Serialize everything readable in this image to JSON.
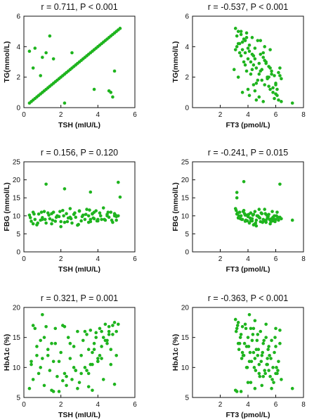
{
  "colors": {
    "points": "#1eb41e",
    "axis": "#111111",
    "background": "#ffffff"
  },
  "chart_data": [
    {
      "id": "tg-tsh",
      "type": "scatter",
      "title": "r = 0.711, P < 0.001",
      "xlabel": "TSH (mIU/L)",
      "ylabel": "TG(mmol/L)",
      "xlim": [
        0,
        6
      ],
      "ylim": [
        0,
        6
      ],
      "xticks": [
        "0",
        "2",
        "4",
        "6"
      ],
      "yticks": [
        "0",
        "2",
        "4",
        "6"
      ],
      "grid": false,
      "x": [
        0.3,
        0.4,
        0.5,
        0.6,
        0.7,
        0.8,
        0.9,
        1.0,
        1.1,
        1.2,
        1.3,
        1.4,
        1.5,
        1.6,
        1.7,
        1.8,
        1.9,
        2.0,
        2.1,
        2.2,
        2.3,
        2.4,
        2.5,
        2.6,
        2.7,
        2.8,
        2.9,
        3.0,
        3.1,
        3.2,
        3.3,
        3.4,
        3.5,
        3.6,
        3.7,
        3.8,
        3.9,
        4.0,
        4.1,
        4.2,
        4.3,
        4.4,
        4.5,
        4.6,
        4.7,
        4.8,
        4.9,
        5.0,
        5.1,
        5.2,
        0.3,
        0.6,
        0.5,
        0.9,
        1.2,
        1.4,
        1.6,
        1.0,
        2.2,
        2.6,
        3.8,
        4.6,
        4.9,
        4.8,
        4.7
      ],
      "y": [
        0.3,
        0.4,
        0.5,
        0.6,
        0.7,
        0.8,
        0.9,
        1.0,
        1.1,
        1.2,
        1.3,
        1.4,
        1.5,
        1.6,
        1.7,
        1.8,
        1.9,
        2.0,
        2.1,
        2.2,
        2.3,
        2.4,
        2.5,
        2.6,
        2.7,
        2.8,
        2.9,
        3.0,
        3.1,
        3.2,
        3.3,
        3.4,
        3.5,
        3.6,
        3.7,
        3.8,
        3.9,
        4.0,
        4.1,
        4.2,
        4.3,
        4.4,
        4.5,
        4.6,
        4.7,
        4.8,
        4.9,
        5.0,
        5.1,
        5.2,
        3.7,
        3.9,
        2.6,
        2.1,
        3.6,
        4.7,
        3.2,
        3.3,
        0.3,
        3.6,
        1.2,
        1.1,
        2.4,
        0.7,
        1.0
      ]
    },
    {
      "id": "tg-ft3",
      "type": "scatter",
      "title": "r = -0.537, P < 0.001",
      "xlabel": "FT3 (pmol/L)",
      "ylabel": "TG(mmol/L)",
      "xlim": [
        0,
        8
      ],
      "ylim": [
        0,
        6
      ],
      "xticks": [
        "2",
        "4",
        "6",
        "8"
      ],
      "yticks": [
        "0",
        "2",
        "4",
        "6"
      ],
      "grid": false,
      "x": [
        3.1,
        3.2,
        3.3,
        3.4,
        3.5,
        3.6,
        3.7,
        3.8,
        3.9,
        4.0,
        4.1,
        4.2,
        4.3,
        4.4,
        4.5,
        4.6,
        4.7,
        4.8,
        4.9,
        5.0,
        5.1,
        5.2,
        5.3,
        5.4,
        5.5,
        5.6,
        5.7,
        5.8,
        5.9,
        6.0,
        6.1,
        6.2,
        6.3,
        6.4,
        7.2,
        3.1,
        3.3,
        3.5,
        3.7,
        3.9,
        4.1,
        4.3,
        4.5,
        4.7,
        4.9,
        5.1,
        5.3,
        5.5,
        5.7,
        5.9,
        6.1,
        3.2,
        3.4,
        3.6,
        3.8,
        4.0,
        4.2,
        4.4,
        4.6,
        4.8,
        5.0,
        5.2,
        5.4,
        5.6,
        5.8,
        6.0,
        6.3,
        3.6,
        4.0,
        4.4,
        4.8,
        5.2,
        5.6,
        6.2,
        3.3,
        3.9,
        4.5,
        5.1,
        5.5,
        6.0,
        4.1,
        4.6,
        3.5,
        3.0,
        3.8,
        4.3,
        4.9,
        5.4,
        6.4
      ],
      "y": [
        5.2,
        4.7,
        5.0,
        4.2,
        4.8,
        3.8,
        4.5,
        3.6,
        4.9,
        3.2,
        4.1,
        3.0,
        4.6,
        2.8,
        3.9,
        2.6,
        4.4,
        2.2,
        3.5,
        1.8,
        3.3,
        1.5,
        3.0,
        2.0,
        2.7,
        1.2,
        2.4,
        1.0,
        2.1,
        1.6,
        0.8,
        2.3,
        2.6,
        1.9,
        0.3,
        3.8,
        4.2,
        3.4,
        3.0,
        4.6,
        3.7,
        2.5,
        3.2,
        1.8,
        2.4,
        3.6,
        2.9,
        1.4,
        2.2,
        0.6,
        1.2,
        4.0,
        3.6,
        4.3,
        2.8,
        3.9,
        2.2,
        3.4,
        1.6,
        2.9,
        2.5,
        3.1,
        1.9,
        2.6,
        1.3,
        0.9,
        2.1,
        1.0,
        1.2,
        1.5,
        0.7,
        4.0,
        3.8,
        0.5,
        2.0,
        2.4,
        1.1,
        0.4,
        2.0,
        1.5,
        0.8,
        0.5,
        5.0,
        2.5,
        4.4,
        3.5,
        4.4,
        2.0,
        0.4
      ]
    },
    {
      "id": "fbg-tsh",
      "type": "scatter",
      "title": "r = 0.156, P = 0.120",
      "xlabel": "TSH (mIU/L)",
      "ylabel": "FBG (mmol/L)",
      "xlim": [
        0,
        6
      ],
      "ylim": [
        0,
        25
      ],
      "xticks": [
        "0",
        "2",
        "4",
        "6"
      ],
      "yticks": [
        "0",
        "5",
        "10",
        "15",
        "20",
        "25"
      ],
      "grid": false,
      "x": [
        0.3,
        0.4,
        0.5,
        0.6,
        0.7,
        0.8,
        0.9,
        1.0,
        1.1,
        1.2,
        1.3,
        1.4,
        1.5,
        1.6,
        1.7,
        1.8,
        1.9,
        2.0,
        2.1,
        2.2,
        2.3,
        2.4,
        2.5,
        2.6,
        2.7,
        2.8,
        2.9,
        3.0,
        3.1,
        3.2,
        3.3,
        3.4,
        3.5,
        3.6,
        3.7,
        3.8,
        3.9,
        4.0,
        4.1,
        4.2,
        4.3,
        4.4,
        4.5,
        4.6,
        4.7,
        4.8,
        4.9,
        5.0,
        5.1,
        0.35,
        0.55,
        0.75,
        0.95,
        1.15,
        1.35,
        1.55,
        1.75,
        1.95,
        2.15,
        2.35,
        2.55,
        2.75,
        2.95,
        3.15,
        3.35,
        3.55,
        3.75,
        3.95,
        4.15,
        4.35,
        4.55,
        4.75,
        4.95,
        0.5,
        1.0,
        1.5,
        2.0,
        2.5,
        3.0,
        3.5,
        4.0,
        4.5,
        5.0,
        3.6,
        3.7,
        3.8,
        1.2,
        2.2,
        3.6,
        5.1,
        5.2,
        4.9
      ],
      "y": [
        10.2,
        8.5,
        11.0,
        9.0,
        7.5,
        10.5,
        8.8,
        9.5,
        11.2,
        8.0,
        10.8,
        9.2,
        7.8,
        11.0,
        8.5,
        10.0,
        9.8,
        7.0,
        11.5,
        8.2,
        10.6,
        9.4,
        12.0,
        8.0,
        10.4,
        9.6,
        7.4,
        11.3,
        8.6,
        10.2,
        9.0,
        11.8,
        10.0,
        8.4,
        10.6,
        9.2,
        11.4,
        8.6,
        10.8,
        9.0,
        12.2,
        8.8,
        10.4,
        9.6,
        11.0,
        8.2,
        10.6,
        9.8,
        10.0,
        9.5,
        10.5,
        8.0,
        11.0,
        9.0,
        10.2,
        8.8,
        9.6,
        11.2,
        10.0,
        8.4,
        9.2,
        10.8,
        7.6,
        9.8,
        10.4,
        11.6,
        9.4,
        8.6,
        10.0,
        9.0,
        11.0,
        8.8,
        10.2,
        7.8,
        9.0,
        10.6,
        8.4,
        9.6,
        11.4,
        8.2,
        9.0,
        10.0,
        8.8,
        9.0,
        10.5,
        11.0,
        18.8,
        17.5,
        16.6,
        19.3,
        15.2,
        10.0
      ]
    },
    {
      "id": "fbg-ft3",
      "type": "scatter",
      "title": "r = -0.241, P = 0.015",
      "xlabel": "FT3 (pmol/L)",
      "ylabel": "FBG (mmol/L)",
      "xlim": [
        0,
        8
      ],
      "ylim": [
        0,
        25
      ],
      "xticks": [
        "2",
        "4",
        "6",
        "8"
      ],
      "yticks": [
        "0",
        "5",
        "10",
        "15",
        "20",
        "25"
      ],
      "grid": false,
      "x": [
        3.1,
        3.2,
        3.3,
        3.4,
        3.5,
        3.6,
        3.7,
        3.8,
        3.9,
        4.0,
        4.1,
        4.2,
        4.3,
        4.4,
        4.5,
        4.6,
        4.7,
        4.8,
        4.9,
        5.0,
        5.1,
        5.2,
        5.3,
        5.4,
        5.5,
        5.6,
        5.7,
        5.8,
        5.9,
        6.0,
        6.1,
        6.2,
        6.3,
        6.4,
        7.2,
        3.15,
        3.35,
        3.55,
        3.75,
        3.95,
        4.15,
        4.35,
        4.55,
        4.75,
        4.95,
        5.15,
        5.35,
        5.55,
        5.75,
        5.95,
        6.15,
        3.25,
        3.45,
        3.65,
        3.85,
        4.05,
        4.25,
        4.45,
        4.65,
        4.85,
        5.05,
        5.25,
        5.45,
        5.65,
        5.85,
        6.05,
        3.3,
        3.8,
        4.3,
        4.8,
        5.3,
        5.8,
        4.4,
        4.6,
        4.2,
        3.2,
        3.2,
        3.7,
        6.3
      ],
      "y": [
        12.0,
        10.5,
        9.5,
        11.0,
        10.0,
        9.0,
        11.5,
        8.5,
        10.2,
        9.8,
        8.0,
        10.8,
        9.2,
        7.5,
        11.2,
        8.8,
        10.0,
        9.6,
        8.4,
        10.6,
        9.0,
        11.8,
        8.2,
        9.4,
        10.4,
        7.8,
        9.2,
        8.6,
        10.0,
        9.0,
        11.0,
        8.8,
        9.6,
        9.2,
        8.8,
        11.5,
        10.0,
        9.0,
        10.6,
        8.6,
        9.4,
        10.2,
        8.0,
        9.8,
        10.8,
        8.6,
        10.2,
        9.0,
        11.2,
        8.4,
        9.6,
        10.8,
        9.2,
        11.2,
        8.8,
        10.4,
        9.0,
        7.6,
        10.0,
        9.4,
        8.2,
        10.6,
        9.8,
        8.4,
        9.2,
        10.0,
        9.4,
        10.2,
        8.6,
        11.8,
        8.8,
        9.6,
        10.4,
        7.2,
        8.6,
        16.5,
        15.0,
        19.5,
        18.8
      ]
    },
    {
      "id": "hba1c-tsh",
      "type": "scatter",
      "title": "r = 0.321, P = 0.001",
      "xlabel": "TSH (mIU/L)",
      "ylabel": "HbA1c (%)",
      "xlim": [
        0,
        6
      ],
      "ylim": [
        5,
        20
      ],
      "xticks": [
        "0",
        "2",
        "4",
        "6"
      ],
      "yticks": [
        "5",
        "10",
        "15",
        "20"
      ],
      "grid": false,
      "x": [
        0.3,
        0.4,
        0.5,
        0.6,
        0.7,
        0.8,
        0.9,
        1.0,
        1.1,
        1.2,
        1.3,
        1.4,
        1.5,
        1.6,
        1.7,
        1.8,
        1.9,
        2.0,
        2.1,
        2.2,
        2.3,
        2.4,
        2.5,
        2.6,
        2.7,
        2.8,
        2.9,
        3.0,
        3.1,
        3.2,
        3.3,
        3.4,
        3.5,
        3.6,
        3.7,
        3.8,
        3.9,
        4.0,
        4.1,
        4.2,
        4.3,
        4.4,
        4.5,
        4.6,
        4.7,
        4.8,
        4.9,
        5.0,
        5.1,
        0.5,
        0.7,
        0.9,
        1.1,
        1.3,
        1.5,
        1.7,
        1.9,
        2.1,
        2.3,
        2.5,
        2.7,
        2.9,
        3.1,
        3.3,
        3.5,
        3.7,
        3.9,
        4.1,
        4.3,
        4.5,
        4.7,
        4.9,
        3.6,
        3.8,
        4.0,
        4.2,
        4.4,
        4.6,
        4.8,
        5.0,
        0.4,
        1.0,
        1.6,
        2.2,
        2.8,
        3.4,
        4.0,
        4.6,
        3.5,
        4.2,
        3.7
      ],
      "y": [
        6.5,
        10.5,
        8.0,
        16.5,
        12.0,
        9.0,
        14.5,
        11.5,
        7.0,
        16.8,
        13.0,
        9.5,
        6.2,
        11.0,
        14.0,
        8.5,
        6.0,
        12.5,
        17.0,
        9.0,
        7.0,
        15.0,
        11.5,
        8.0,
        13.5,
        9.5,
        16.0,
        7.5,
        12.0,
        14.5,
        10.0,
        15.5,
        9.0,
        16.2,
        12.5,
        14.0,
        15.8,
        11.0,
        16.5,
        13.5,
        15.0,
        17.2,
        14.5,
        16.8,
        13.0,
        15.5,
        17.5,
        16.0,
        17.2,
        17.0,
        13.5,
        10.0,
        15.0,
        12.0,
        14.0,
        16.5,
        11.0,
        7.8,
        8.5,
        14.0,
        10.0,
        6.5,
        9.0,
        16.0,
        13.0,
        6.2,
        15.0,
        12.0,
        8.0,
        14.0,
        10.5,
        7.2,
        10.5,
        13.0,
        11.5,
        16.0,
        14.5,
        15.5,
        17.0,
        12.0,
        11.0,
        18.8,
        6.0,
        16.8,
        9.5,
        9.5,
        11.0,
        16.0,
        6.8,
        11.5,
        10.5
      ]
    },
    {
      "id": "hba1c-ft3",
      "type": "scatter",
      "title": "r = -0.363, P < 0.001",
      "xlabel": "FT3 (pmol/L)",
      "ylabel": "HbA1c (%)",
      "xlim": [
        0,
        8
      ],
      "ylim": [
        5,
        20
      ],
      "xticks": [
        "2",
        "4",
        "6",
        "8"
      ],
      "yticks": [
        "5",
        "10",
        "15",
        "20"
      ],
      "grid": false,
      "x": [
        3.1,
        3.2,
        3.3,
        3.4,
        3.5,
        3.6,
        3.7,
        3.8,
        3.9,
        4.0,
        4.1,
        4.2,
        4.3,
        4.4,
        4.5,
        4.6,
        4.7,
        4.8,
        4.9,
        5.0,
        5.1,
        5.2,
        5.3,
        5.4,
        5.5,
        5.6,
        5.7,
        5.8,
        5.9,
        6.0,
        6.1,
        6.2,
        6.3,
        6.4,
        7.2,
        3.15,
        3.35,
        3.55,
        3.75,
        3.95,
        4.15,
        4.35,
        4.55,
        4.75,
        4.95,
        5.15,
        5.35,
        5.55,
        5.75,
        5.95,
        6.15,
        3.25,
        3.45,
        3.65,
        3.85,
        4.05,
        4.25,
        4.45,
        4.65,
        4.85,
        5.05,
        5.25,
        5.45,
        5.65,
        5.85,
        6.05,
        3.3,
        3.6,
        3.9,
        4.2,
        4.5,
        4.8,
        5.1,
        5.4,
        5.7,
        6.0,
        6.3,
        3.5,
        4.0,
        4.5,
        5.0,
        5.5,
        6.0,
        4.4,
        4.1,
        3.2,
        3.1,
        4.7,
        5.3
      ],
      "y": [
        18.0,
        16.5,
        17.5,
        14.0,
        15.5,
        16.8,
        12.0,
        17.2,
        13.5,
        15.0,
        11.0,
        16.5,
        14.5,
        12.5,
        17.8,
        13.0,
        15.5,
        10.5,
        16.0,
        12.0,
        14.0,
        9.5,
        15.0,
        11.5,
        13.5,
        8.5,
        14.5,
        10.0,
        12.5,
        16.5,
        9.0,
        11.0,
        16.2,
        8.0,
        6.5,
        16.0,
        13.0,
        11.5,
        14.0,
        10.0,
        12.5,
        15.5,
        9.5,
        13.0,
        11.0,
        14.5,
        10.5,
        12.0,
        8.0,
        15.0,
        9.5,
        17.0,
        15.0,
        12.0,
        16.5,
        13.5,
        11.0,
        10.0,
        14.5,
        8.5,
        12.5,
        9.0,
        13.0,
        11.5,
        7.5,
        10.0,
        14.0,
        12.5,
        10.0,
        7.5,
        11.5,
        9.0,
        8.5,
        10.5,
        6.5,
        9.0,
        14.0,
        6.0,
        7.5,
        6.5,
        7.0,
        9.5,
        13.5,
        16.5,
        18.8,
        6.0,
        6.2,
        12.0,
        17.2
      ]
    }
  ]
}
